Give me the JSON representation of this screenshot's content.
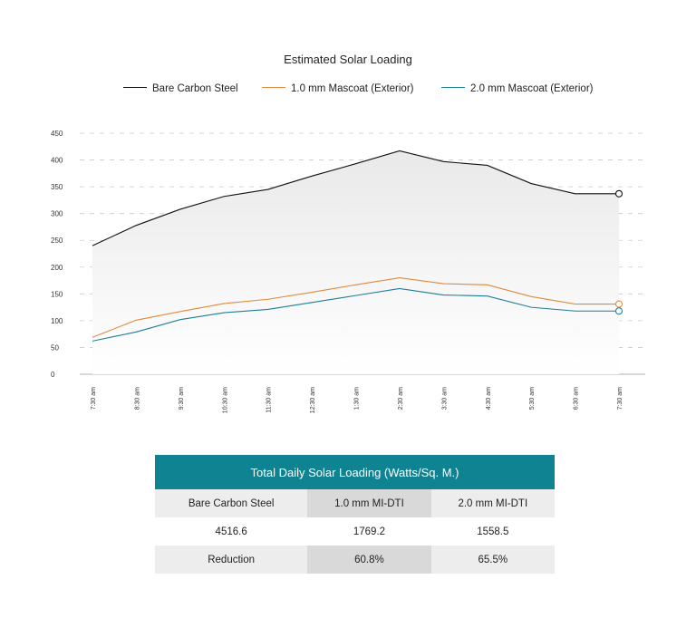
{
  "chart_data": {
    "type": "line",
    "title": "Estimated Solar Loading",
    "categories": [
      "7:30 am",
      "8:30 am",
      "9:30 am",
      "10:30 am",
      "11:30 am",
      "12:30 am",
      "1:30 am",
      "2:30 am",
      "3:30 am",
      "4:30 am",
      "5:30 am",
      "6:30 am",
      "7:30 am"
    ],
    "yticks": [
      0,
      50,
      100,
      150,
      200,
      250,
      300,
      350,
      400,
      450
    ],
    "ylim": [
      0,
      450
    ],
    "grid": true,
    "legend_position": "top",
    "series": [
      {
        "name": "Bare Carbon Steel",
        "color": "#111111",
        "values": [
          240,
          278,
          308,
          332,
          345,
          370,
          393,
          417,
          397,
          390,
          356,
          337,
          337
        ]
      },
      {
        "name": "1.0 mm Mascoat (Exterior)",
        "color": "#e08a3c",
        "values": [
          69,
          101,
          117,
          132,
          140,
          153,
          167,
          180,
          169,
          167,
          145,
          131,
          131
        ]
      },
      {
        "name": "2.0 mm Mascoat (Exterior)",
        "color": "#1e7e97",
        "values": [
          62,
          79,
          102,
          115,
          121,
          134,
          147,
          160,
          148,
          146,
          125,
          118,
          118
        ]
      }
    ]
  },
  "table": {
    "title": "Total Daily Solar Loading (Watts/Sq. M.)",
    "headers": [
      "Bare Carbon Steel",
      "1.0 mm MI-DTI",
      "2.0 mm MI-DTI"
    ],
    "values": [
      "4516.6",
      "1769.2",
      "1558.5"
    ],
    "reduction_row": [
      "Reduction",
      "60.8%",
      "65.5%"
    ]
  }
}
